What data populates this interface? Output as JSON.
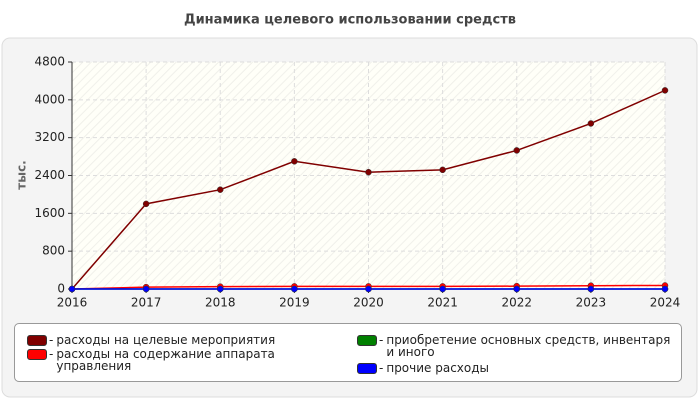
{
  "chart_data": {
    "type": "line",
    "title": "Динамика целевого использовании средств",
    "y_label": "тыс.",
    "x": [
      2016,
      2017,
      2018,
      2019,
      2020,
      2021,
      2022,
      2023,
      2024
    ],
    "xlim": [
      2016,
      2024
    ],
    "xticks": [
      2016,
      2017,
      2018,
      2019,
      2020,
      2021,
      2022,
      2023,
      2024
    ],
    "ylim": [
      0,
      4800
    ],
    "yticks": [
      0,
      800,
      1600,
      2400,
      3200,
      4000,
      4800
    ],
    "grid": true,
    "legend_separator": "-",
    "series": [
      {
        "name": "расходы на целевые мероприятия",
        "color": "#800000",
        "values": [
          0,
          1800,
          2100,
          2700,
          2470,
          2520,
          2930,
          3500,
          4200
        ]
      },
      {
        "name": "расходы на содержание аппарата управления",
        "color": "#ff0000",
        "values": [
          0,
          40,
          50,
          55,
          55,
          55,
          60,
          70,
          75
        ]
      },
      {
        "name": "приобретение основных средств, инвентаря и иного",
        "color": "#008000",
        "values": [
          0,
          0,
          0,
          0,
          0,
          0,
          0,
          0,
          0
        ]
      },
      {
        "name": "прочие расходы",
        "color": "#0000ff",
        "values": [
          0,
          0,
          0,
          0,
          0,
          0,
          0,
          0,
          0
        ]
      }
    ]
  }
}
